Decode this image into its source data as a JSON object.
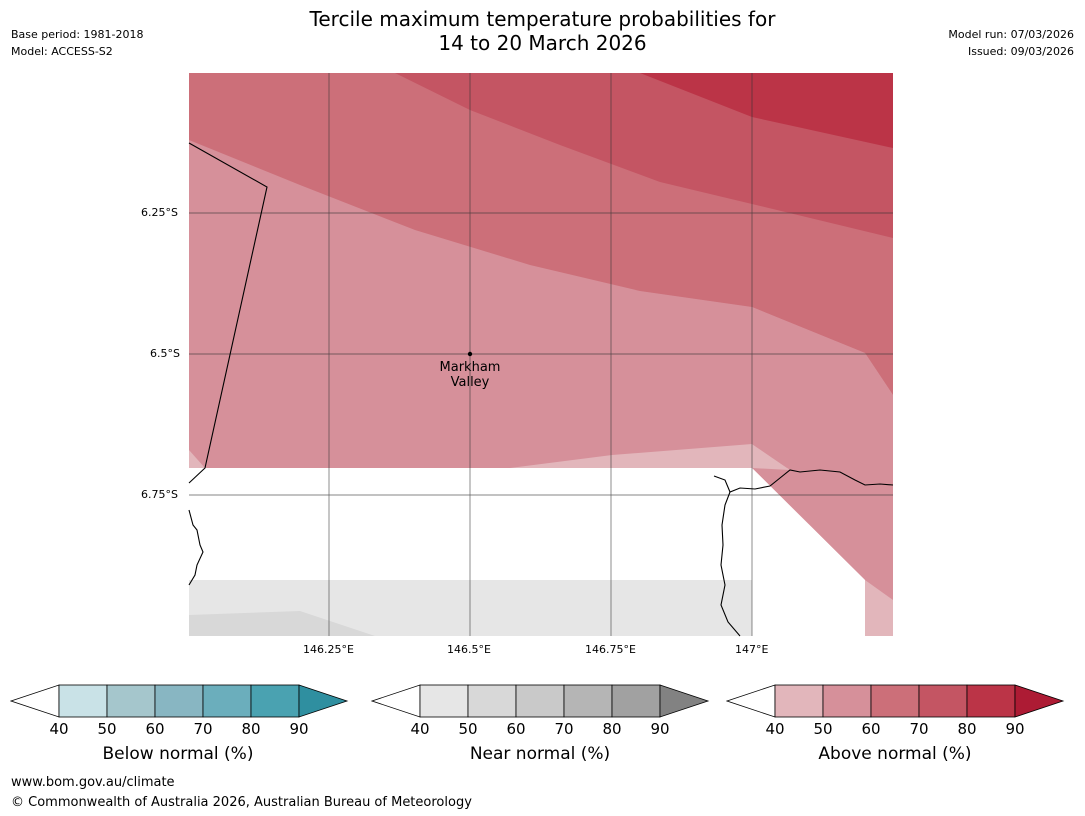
{
  "title_line1": "Tercile maximum temperature probabilities for",
  "title_line2": "14 to 20 March 2026",
  "meta_left": [
    "Base period: 1981-2018",
    "Model: ACCESS-S2"
  ],
  "meta_right": [
    "Model run: 07/03/2026",
    "Issued: 09/03/2026"
  ],
  "lat_labels": [
    "6.25°S",
    "6.5°S",
    "6.75°S"
  ],
  "lon_labels": [
    "146.25°E",
    "146.5°E",
    "146.75°E",
    "147°E"
  ],
  "place": {
    "name_line1": "Markham",
    "name_line2": "Valley",
    "lat": -6.5,
    "lon": 146.5
  },
  "colorbars": [
    {
      "title": "Below normal (%)",
      "ticks": [
        "40",
        "50",
        "60",
        "70",
        "80",
        "90"
      ],
      "colors": [
        "#c9e2e7",
        "#a5c6cc",
        "#88b6c2",
        "#6baebc",
        "#4aa2b1"
      ],
      "extend_color": "#2f8fa0"
    },
    {
      "title": "Near normal (%)",
      "ticks": [
        "40",
        "50",
        "60",
        "70",
        "80",
        "90"
      ],
      "colors": [
        "#e6e6e6",
        "#d8d8d8",
        "#c9c9c9",
        "#b5b5b5",
        "#a1a1a1"
      ],
      "extend_color": "#828282"
    },
    {
      "title": "Above normal (%)",
      "ticks": [
        "40",
        "50",
        "60",
        "70",
        "80",
        "90"
      ],
      "colors": [
        "#e2b6bb",
        "#d6909a",
        "#cc6f79",
        "#c45563",
        "#bb3447"
      ],
      "extend_color": "#ad1b34"
    }
  ],
  "footer_url": "www.bom.gov.au/climate",
  "footer_copyright": "© Commonwealth of Australia 2026, Australian Bureau of Meteorology"
}
